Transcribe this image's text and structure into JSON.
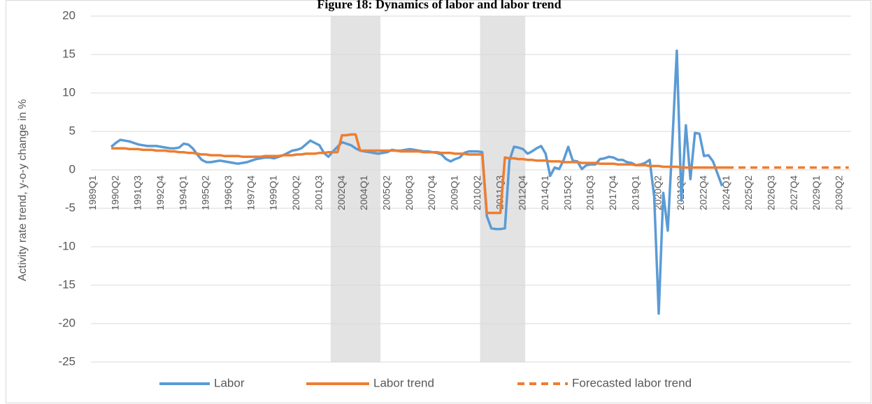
{
  "chart_data": {
    "type": "line",
    "title": "Figure 18: Dynamics of labor and labor trend",
    "y_label": "Activity rate trend, y-o-y change in %",
    "categories": [
      "1989Q1",
      null,
      null,
      null,
      null,
      "1990Q2",
      null,
      null,
      null,
      null,
      "1991Q3",
      null,
      null,
      null,
      null,
      "1992Q4",
      null,
      null,
      null,
      null,
      "1994Q1",
      null,
      null,
      null,
      null,
      "1995Q2",
      null,
      null,
      null,
      null,
      "1996Q3",
      null,
      null,
      null,
      null,
      "1997Q4",
      null,
      null,
      null,
      null,
      "1999Q1",
      null,
      null,
      null,
      null,
      "2000Q2",
      null,
      null,
      null,
      null,
      "2001Q3",
      null,
      null,
      null,
      null,
      "2002Q4",
      null,
      null,
      null,
      null,
      "2004Q1",
      null,
      null,
      null,
      null,
      "2005Q2",
      null,
      null,
      null,
      null,
      "2006Q3",
      null,
      null,
      null,
      null,
      "2007Q4",
      null,
      null,
      null,
      null,
      "2009Q1",
      null,
      null,
      null,
      null,
      "2010Q2",
      null,
      null,
      null,
      null,
      "2011Q3",
      null,
      null,
      null,
      null,
      "2012Q4",
      null,
      null,
      null,
      null,
      "2014Q1",
      null,
      null,
      null,
      null,
      "2015Q2",
      null,
      null,
      null,
      null,
      "2016Q3",
      null,
      null,
      null,
      null,
      "2017Q4",
      null,
      null,
      null,
      null,
      "2019Q1",
      null,
      null,
      null,
      null,
      "2020Q2",
      null,
      null,
      null,
      null,
      "2021Q3",
      null,
      null,
      null,
      null,
      "2022Q4",
      null,
      null,
      null,
      null,
      "2024Q1",
      null,
      null,
      null,
      null,
      "2025Q2",
      null,
      null,
      null,
      null,
      "2026Q3",
      null,
      null,
      null,
      null,
      "2027Q4",
      null,
      null,
      null,
      null,
      "2029Q1",
      null,
      null,
      null,
      null,
      "2030Q2",
      null,
      null
    ],
    "series": [
      {
        "name": "Labor",
        "color": "#5b9bd5",
        "dashed": false,
        "values": [
          null,
          null,
          null,
          null,
          3.0,
          3.5,
          3.9,
          3.8,
          3.7,
          3.5,
          3.3,
          3.2,
          3.1,
          3.1,
          3.1,
          3.0,
          2.9,
          2.8,
          2.8,
          2.9,
          3.4,
          3.3,
          2.8,
          2.0,
          1.3,
          1.0,
          1.0,
          1.1,
          1.2,
          1.1,
          1.0,
          0.9,
          0.8,
          0.9,
          1.0,
          1.2,
          1.4,
          1.5,
          1.6,
          1.6,
          1.5,
          1.7,
          1.9,
          2.2,
          2.5,
          2.6,
          2.8,
          3.3,
          3.8,
          3.5,
          3.2,
          2.2,
          1.7,
          2.4,
          3.0,
          3.6,
          3.4,
          3.2,
          2.8,
          2.5,
          2.4,
          2.3,
          2.2,
          2.1,
          2.2,
          2.3,
          2.6,
          2.5,
          2.5,
          2.6,
          2.7,
          2.6,
          2.5,
          2.4,
          2.4,
          2.3,
          2.2,
          2.0,
          1.4,
          1.1,
          1.4,
          1.6,
          2.2,
          2.4,
          2.4,
          2.4,
          2.3,
          -6.0,
          -7.6,
          -7.7,
          -7.7,
          -7.6,
          1.2,
          3.0,
          2.9,
          2.7,
          2.1,
          2.4,
          2.8,
          3.1,
          2.1,
          -0.8,
          0.3,
          0.1,
          1.3,
          3.0,
          1.2,
          1.1,
          0.1,
          0.6,
          0.7,
          0.7,
          1.4,
          1.5,
          1.7,
          1.6,
          1.3,
          1.3,
          1.0,
          0.9,
          0.6,
          0.7,
          0.9,
          1.3,
          -3.5,
          -18.7,
          -3.0,
          -7.9,
          3.5,
          15.5,
          -4.0,
          5.8,
          -1.2,
          4.8,
          4.7,
          1.8,
          1.9,
          1.1,
          -0.5,
          -2.1,
          null,
          null,
          null,
          null,
          null,
          null,
          null,
          null,
          null,
          null,
          null,
          null,
          null,
          null,
          null,
          null,
          null,
          null,
          null,
          null,
          null,
          null,
          null,
          null,
          null,
          null,
          null,
          null
        ]
      },
      {
        "name": "Labor trend",
        "color": "#ed7d31",
        "dashed": false,
        "values": [
          null,
          null,
          null,
          null,
          2.8,
          2.8,
          2.8,
          2.8,
          2.7,
          2.7,
          2.7,
          2.6,
          2.6,
          2.6,
          2.5,
          2.5,
          2.5,
          2.4,
          2.4,
          2.3,
          2.3,
          2.2,
          2.2,
          2.1,
          2.0,
          2.0,
          1.9,
          1.9,
          1.9,
          1.8,
          1.8,
          1.8,
          1.8,
          1.7,
          1.7,
          1.7,
          1.7,
          1.7,
          1.8,
          1.8,
          1.8,
          1.8,
          1.9,
          1.9,
          1.9,
          2.0,
          2.0,
          2.1,
          2.1,
          2.1,
          2.2,
          2.2,
          2.3,
          2.3,
          2.3,
          4.5,
          4.5,
          4.6,
          4.6,
          2.5,
          2.5,
          2.5,
          2.5,
          2.5,
          2.5,
          2.5,
          2.5,
          2.5,
          2.4,
          2.4,
          2.4,
          2.4,
          2.4,
          2.3,
          2.3,
          2.3,
          2.3,
          2.2,
          2.2,
          2.2,
          2.1,
          2.1,
          2.1,
          2.0,
          2.0,
          2.0,
          2.0,
          -5.6,
          -5.6,
          -5.6,
          -5.6,
          1.6,
          1.5,
          1.5,
          1.4,
          1.4,
          1.3,
          1.3,
          1.2,
          1.2,
          1.2,
          1.1,
          1.1,
          1.1,
          1.0,
          1.0,
          1.0,
          1.0,
          0.9,
          0.9,
          0.9,
          0.9,
          0.8,
          0.8,
          0.8,
          0.8,
          0.7,
          0.7,
          0.7,
          0.7,
          0.6,
          0.6,
          0.6,
          0.5,
          0.5,
          0.5,
          0.4,
          0.4,
          0.4,
          0.4,
          0.3,
          0.3,
          0.3,
          0.3,
          0.3,
          0.3,
          0.3,
          0.3,
          0.3,
          0.3,
          0.3,
          null,
          null,
          null,
          null,
          null,
          null,
          null,
          null,
          null,
          null,
          null,
          null,
          null,
          null,
          null,
          null,
          null,
          null,
          null,
          null,
          null,
          null,
          null,
          null,
          null,
          null,
          null
        ]
      },
      {
        "name": "Forecasted labor trend",
        "color": "#ed7d31",
        "dashed": true,
        "values": [
          null,
          null,
          null,
          null,
          null,
          null,
          null,
          null,
          null,
          null,
          null,
          null,
          null,
          null,
          null,
          null,
          null,
          null,
          null,
          null,
          null,
          null,
          null,
          null,
          null,
          null,
          null,
          null,
          null,
          null,
          null,
          null,
          null,
          null,
          null,
          null,
          null,
          null,
          null,
          null,
          null,
          null,
          null,
          null,
          null,
          null,
          null,
          null,
          null,
          null,
          null,
          null,
          null,
          null,
          null,
          null,
          null,
          null,
          null,
          null,
          null,
          null,
          null,
          null,
          null,
          null,
          null,
          null,
          null,
          null,
          null,
          null,
          null,
          null,
          null,
          null,
          null,
          null,
          null,
          null,
          null,
          null,
          null,
          null,
          null,
          null,
          null,
          null,
          null,
          null,
          null,
          null,
          null,
          null,
          null,
          null,
          null,
          null,
          null,
          null,
          null,
          null,
          null,
          null,
          null,
          null,
          null,
          null,
          null,
          null,
          null,
          null,
          null,
          null,
          null,
          null,
          null,
          null,
          null,
          null,
          null,
          null,
          null,
          null,
          null,
          null,
          null,
          null,
          null,
          null,
          null,
          null,
          null,
          null,
          null,
          null,
          null,
          null,
          null,
          null,
          0.3,
          0.3,
          0.3,
          0.3,
          0.3,
          0.3,
          0.3,
          0.3,
          0.3,
          0.3,
          0.3,
          0.3,
          0.3,
          0.3,
          0.3,
          0.3,
          0.3,
          0.3,
          0.3,
          0.3,
          0.3,
          0.3,
          0.3,
          0.3,
          0.3,
          0.3,
          0.3,
          0.3
        ]
      }
    ],
    "shaded_spans": [
      {
        "start": 53,
        "end": 63
      },
      {
        "start": 86,
        "end": 95
      }
    ],
    "shade_color": "#e3e3e3",
    "ylim": [
      -25,
      20
    ],
    "yticks": [
      -25,
      -20,
      -15,
      -10,
      -5,
      0,
      5,
      10,
      15,
      20
    ],
    "grid": true,
    "legend": "bottom"
  }
}
